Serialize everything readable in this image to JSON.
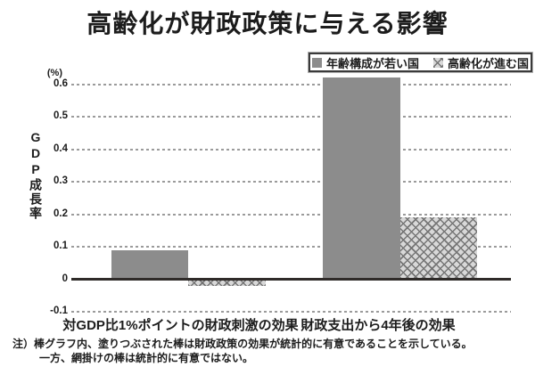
{
  "title": "高齢化が財政政策に与える影響",
  "chart_data": {
    "type": "bar",
    "title": "高齢化が財政政策に与える影響",
    "categories": [
      "対GDP比1%ポイントの財政刺激の効果",
      "財政支出から4年後の効果"
    ],
    "series": [
      {
        "name": "年齢構成が若い国",
        "style": "solid-gray",
        "significant": true,
        "values": [
          0.09,
          0.62
        ]
      },
      {
        "name": "高齢化が進む国",
        "style": "crosshatch",
        "significant": false,
        "values": [
          -0.02,
          0.19
        ]
      }
    ],
    "ylabel": "GDP成長率",
    "y_unit": "(%)",
    "ylim": [
      -0.1,
      0.65
    ],
    "y_ticks": [
      "0.6",
      "0.5",
      "0.4",
      "0.3",
      "0.2",
      "0.1",
      "0",
      "-0.1"
    ],
    "grid": "horizontal-dashed",
    "legend_position": "top-right",
    "colors": {
      "solid_bar": "#8c8c8c",
      "hatch_background": "#d8d8d8",
      "hatch_line": "#757575",
      "gridline": "#9b9b9b",
      "zero_line": "#2f2b29",
      "text": "#1c1c1c"
    }
  },
  "note": {
    "line1": "注）棒グラフ内、塗りつぶされた棒は財政政策の効果が統計的に有意であることを示している。",
    "line2": "一方、網掛けの棒は統計的に有意ではない。"
  }
}
